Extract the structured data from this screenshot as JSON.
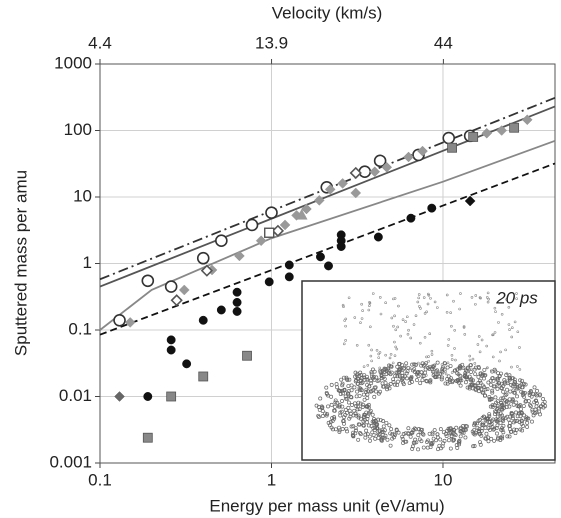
{
  "chart_data": {
    "type": "scatter",
    "x_label": "Energy per mass unit (eV/amu)",
    "y_label": "Sputtered mass per amu",
    "x2_label": "Velocity (km/s)",
    "log_x": true,
    "log_y": true,
    "grid": true,
    "xlim": [
      0.1,
      45
    ],
    "xticks": [
      0.1,
      1,
      10
    ],
    "ylim": [
      0.001,
      1000
    ],
    "yticks": [
      0.001,
      0.01,
      0.1,
      1,
      10,
      100,
      1000
    ],
    "x2lim": [
      4.4,
      93
    ],
    "x2ticks": [
      4.4,
      13.9,
      44
    ],
    "inset_label": "20 ps",
    "series": [
      {
        "marker": "circle-open",
        "color": "#333333",
        "x": [
          0.13,
          0.19,
          0.26,
          0.4,
          0.51,
          0.77,
          1.0,
          2.1,
          3.5,
          4.3,
          7.2,
          10.8,
          14.4
        ],
        "values": [
          0.14,
          0.55,
          0.45,
          1.2,
          2.2,
          3.8,
          5.8,
          14,
          24,
          35,
          43,
          77,
          83
        ]
      },
      {
        "marker": "circle",
        "color": "#111111",
        "x": [
          0.19,
          0.26,
          0.26,
          0.32,
          0.4,
          0.51,
          0.63,
          0.63,
          0.63,
          0.97,
          1.27,
          1.27,
          1.93,
          2.15,
          2.55,
          2.55,
          2.55,
          4.2,
          6.5,
          8.6
        ],
        "values": [
          0.01,
          0.071,
          0.05,
          0.031,
          0.14,
          0.2,
          0.37,
          0.26,
          0.19,
          0.53,
          0.63,
          0.95,
          1.26,
          0.92,
          2.7,
          2.2,
          1.8,
          2.5,
          4.8,
          6.8
        ]
      },
      {
        "marker": "diamond",
        "color": "#999999",
        "x": [
          0.15,
          0.31,
          0.45,
          0.65,
          0.87,
          1.2,
          1.4,
          1.6,
          1.9,
          2.2,
          2.6,
          3.1,
          4.0,
          4.7,
          6.3,
          7.6,
          18,
          22,
          31
        ],
        "values": [
          0.13,
          0.4,
          0.8,
          1.3,
          2.2,
          3.8,
          5.3,
          6.6,
          8.9,
          13,
          16,
          11.5,
          24,
          28,
          40,
          49,
          91,
          100,
          145
        ]
      },
      {
        "marker": "diamond",
        "color": "#666666",
        "x": [
          0.13
        ],
        "values": [
          0.01
        ]
      },
      {
        "marker": "diamond",
        "color": "#111111",
        "x": [
          14.4
        ],
        "values": [
          8.7
        ]
      },
      {
        "marker": "diamond-open",
        "color": "#555555",
        "x": [
          0.28,
          0.42,
          1.09,
          3.1
        ],
        "values": [
          0.28,
          0.78,
          3.1,
          23
        ]
      },
      {
        "marker": "square",
        "color": "#888888",
        "x": [
          0.19,
          0.26,
          0.4,
          0.72,
          11.3,
          15,
          26
        ],
        "values": [
          0.0024,
          0.01,
          0.02,
          0.041,
          55,
          80,
          110
        ]
      },
      {
        "marker": "square-open",
        "color": "#555555",
        "x": [
          0.97
        ],
        "values": [
          2.9
        ]
      },
      {
        "marker": "triangle",
        "color": "#999999",
        "x": [
          1.5
        ],
        "values": [
          5.3
        ]
      }
    ],
    "lines": [
      {
        "style": "dash-dot",
        "color": "#333333",
        "x": [
          0.1,
          45
        ],
        "values": [
          0.58,
          310
        ]
      },
      {
        "style": "solid",
        "color": "#555555",
        "x": [
          0.1,
          45
        ],
        "values": [
          0.45,
          230
        ]
      },
      {
        "style": "solid",
        "color": "#888888",
        "x": [
          0.1,
          0.2,
          1,
          10,
          45
        ],
        "values": [
          0.1,
          0.4,
          2.4,
          17,
          70
        ]
      },
      {
        "style": "dashed",
        "color": "#111111",
        "x": [
          0.1,
          45
        ],
        "values": [
          0.085,
          32
        ]
      }
    ]
  }
}
